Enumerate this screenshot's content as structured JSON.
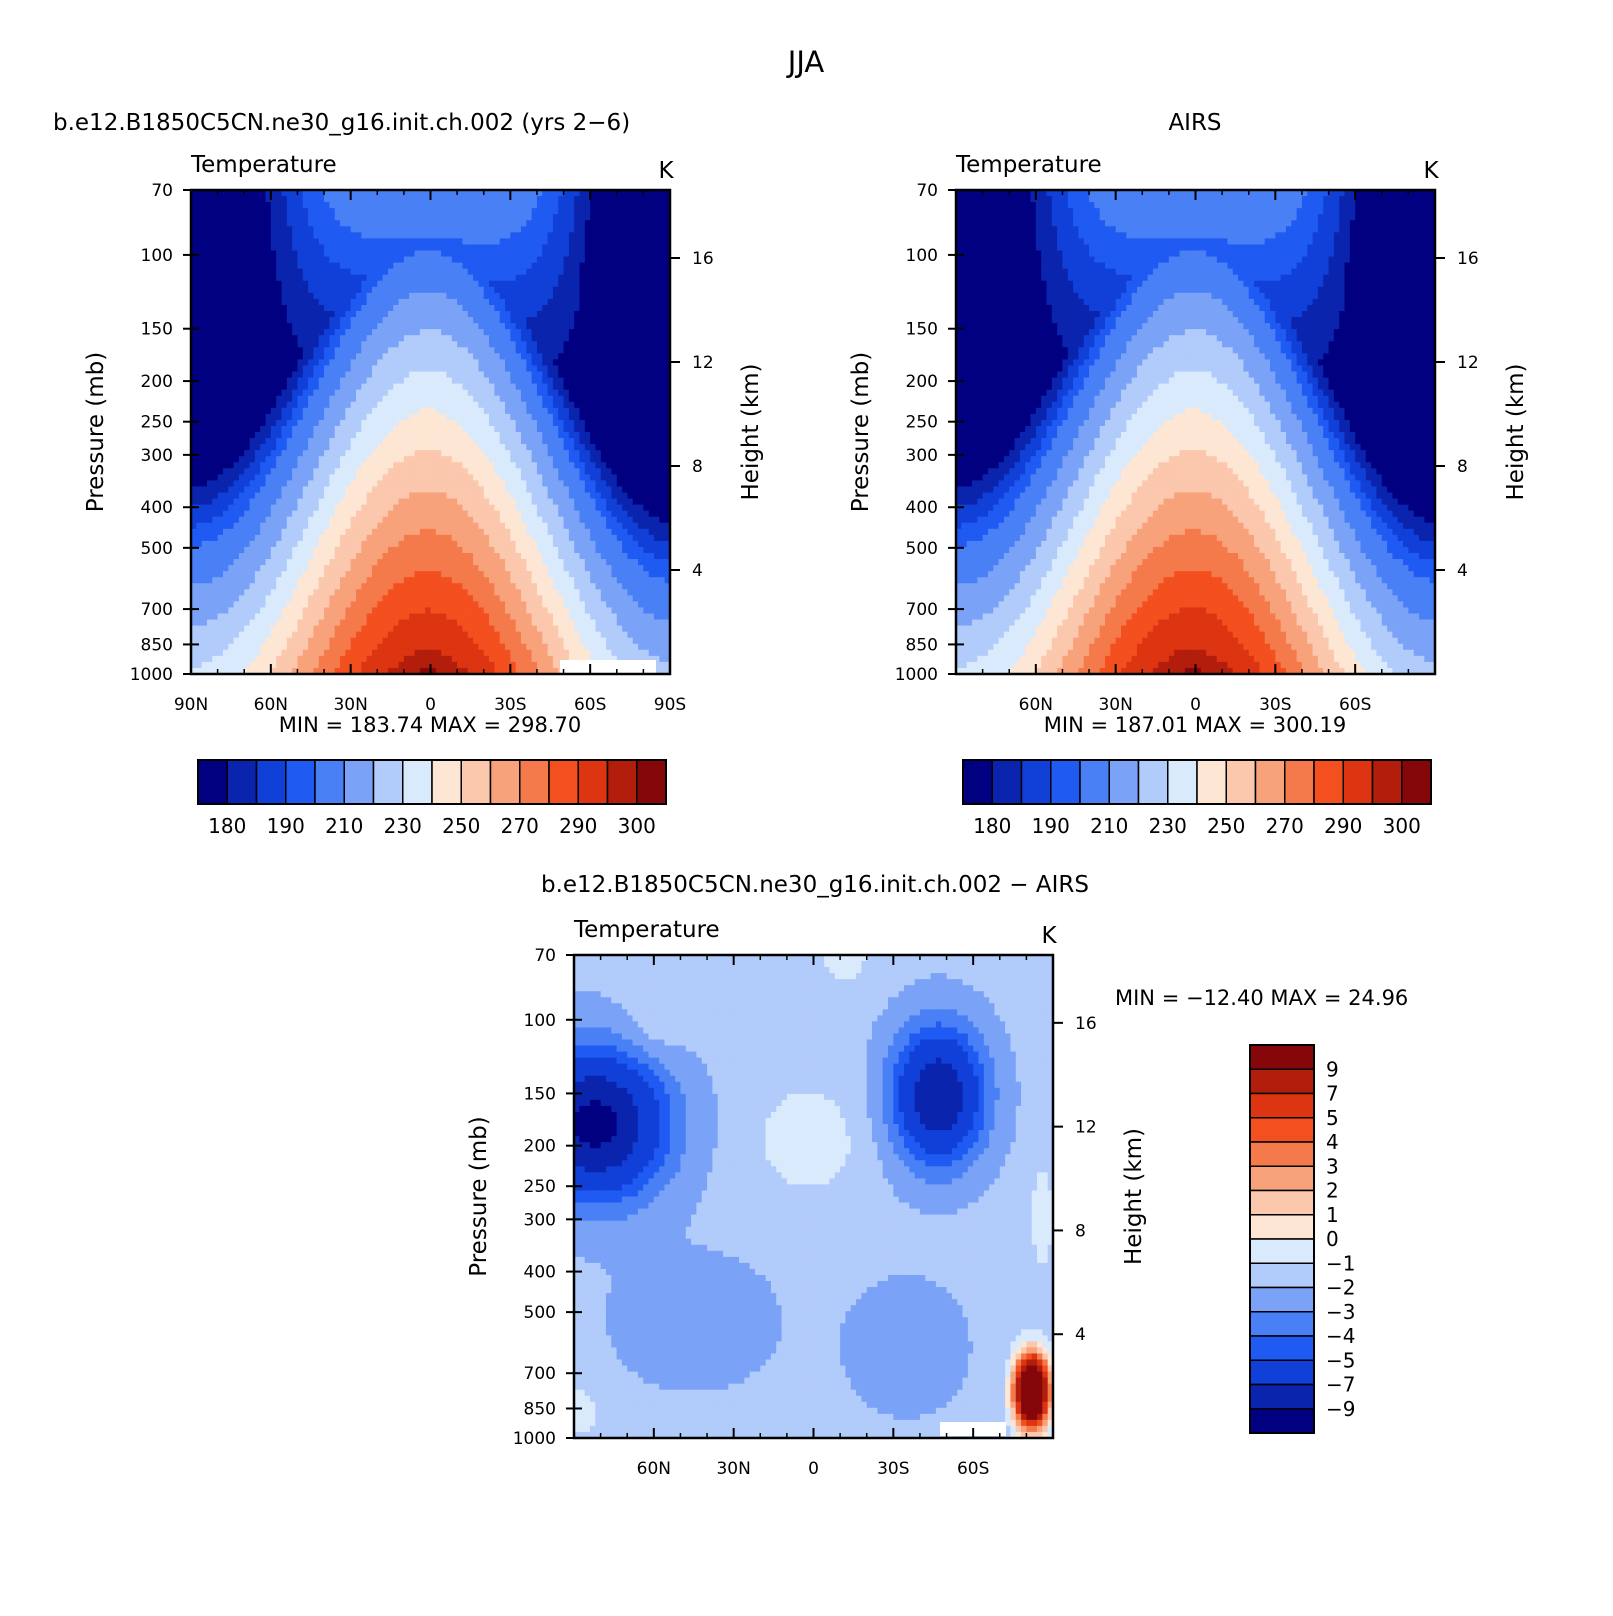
{
  "figure": {
    "title": "JJA",
    "colors": {
      "abs_levels": [
        "#000080",
        "#0a24ad",
        "#1040d8",
        "#1f5af2",
        "#4a80f5",
        "#7aa2f7",
        "#b1cbfa",
        "#d9eafc",
        "#fde6d3",
        "#fbc7ad",
        "#f8a27c",
        "#f57a4b",
        "#f34f1f",
        "#dd3411",
        "#b31e0c",
        "#85070a"
      ],
      "diff_levels": [
        "#000080",
        "#0a24ad",
        "#1040d8",
        "#1f5af2",
        "#4a80f5",
        "#7aa2f7",
        "#b1cbfa",
        "#d9eafc",
        "#fde6d3",
        "#fbc7ad",
        "#f8a27c",
        "#f57a4b",
        "#f34f1f",
        "#dd3411",
        "#b31e0c",
        "#85070a"
      ]
    }
  },
  "chart_data": [
    {
      "type": "heatmap",
      "title": "b.e12.B1850C5CN.ne30_g16.init.ch.002 (yrs 2−6)",
      "subtitle_left": "Temperature",
      "subtitle_right": "K",
      "xlabel": "",
      "ylabel": "Pressure (mb)",
      "ylabel_right": "Height (km)",
      "x_tick_labels": [
        "90N",
        "60N",
        "30N",
        "0",
        "30S",
        "60S",
        "90S"
      ],
      "y_tick_labels": [
        "70",
        "100",
        "150",
        "200",
        "250",
        "300",
        "400",
        "500",
        "700",
        "850",
        "1000"
      ],
      "y2_tick_labels": [
        "16",
        "12",
        "8",
        "4"
      ],
      "xlim": [
        90,
        -90
      ],
      "ylim": [
        1000,
        70
      ],
      "y_scale": "log",
      "min_max": "MIN = 183.74   MAX = 298.70",
      "min": 183.74,
      "max": 298.7,
      "colorbar": {
        "orientation": "horizontal",
        "tick_labels": [
          "180",
          "190",
          "210",
          "230",
          "250",
          "270",
          "290",
          "300"
        ],
        "levels": [
          175,
          180,
          185,
          190,
          200,
          210,
          220,
          230,
          240,
          250,
          260,
          270,
          280,
          290,
          295,
          300
        ]
      }
    },
    {
      "type": "heatmap",
      "title": "AIRS",
      "subtitle_left": "Temperature",
      "subtitle_right": "K",
      "xlabel": "",
      "ylabel": "Pressure (mb)",
      "ylabel_right": "Height (km)",
      "x_tick_labels": [
        "60N",
        "30N",
        "0",
        "30S",
        "60S"
      ],
      "y_tick_labels": [
        "70",
        "100",
        "150",
        "200",
        "250",
        "300",
        "400",
        "500",
        "700",
        "850",
        "1000"
      ],
      "y2_tick_labels": [
        "16",
        "12",
        "8",
        "4"
      ],
      "xlim": [
        90,
        -90
      ],
      "ylim": [
        1000,
        70
      ],
      "y_scale": "log",
      "min_max": "MIN = 187.01   MAX = 300.19",
      "min": 187.01,
      "max": 300.19,
      "colorbar": {
        "orientation": "horizontal",
        "tick_labels": [
          "180",
          "190",
          "210",
          "230",
          "250",
          "270",
          "290",
          "300"
        ],
        "levels": [
          175,
          180,
          185,
          190,
          200,
          210,
          220,
          230,
          240,
          250,
          260,
          270,
          280,
          290,
          295,
          300
        ]
      }
    },
    {
      "type": "heatmap",
      "title": "b.e12.B1850C5CN.ne30_g16.init.ch.002 − AIRS",
      "subtitle_left": "Temperature",
      "subtitle_right": "K",
      "xlabel": "",
      "ylabel": "Pressure (mb)",
      "ylabel_right": "Height (km)",
      "x_tick_labels": [
        "60N",
        "30N",
        "0",
        "30S",
        "60S"
      ],
      "y_tick_labels": [
        "70",
        "100",
        "150",
        "200",
        "250",
        "300",
        "400",
        "500",
        "700",
        "850",
        "1000"
      ],
      "y2_tick_labels": [
        "16",
        "12",
        "8",
        "4"
      ],
      "xlim": [
        90,
        -90
      ],
      "ylim": [
        1000,
        70
      ],
      "y_scale": "log",
      "min_max": "MIN = −12.40   MAX =   24.96",
      "min": -12.4,
      "max": 24.96,
      "colorbar": {
        "orientation": "vertical",
        "tick_labels": [
          "9",
          "7",
          "5",
          "4",
          "3",
          "2",
          "1",
          "0",
          "−1",
          "−2",
          "−3",
          "−4",
          "−5",
          "−7",
          "−9"
        ],
        "levels": [
          -9,
          -7,
          -5,
          -4,
          -3,
          -2,
          -1,
          0,
          1,
          2,
          3,
          4,
          5,
          7,
          9
        ]
      }
    }
  ]
}
